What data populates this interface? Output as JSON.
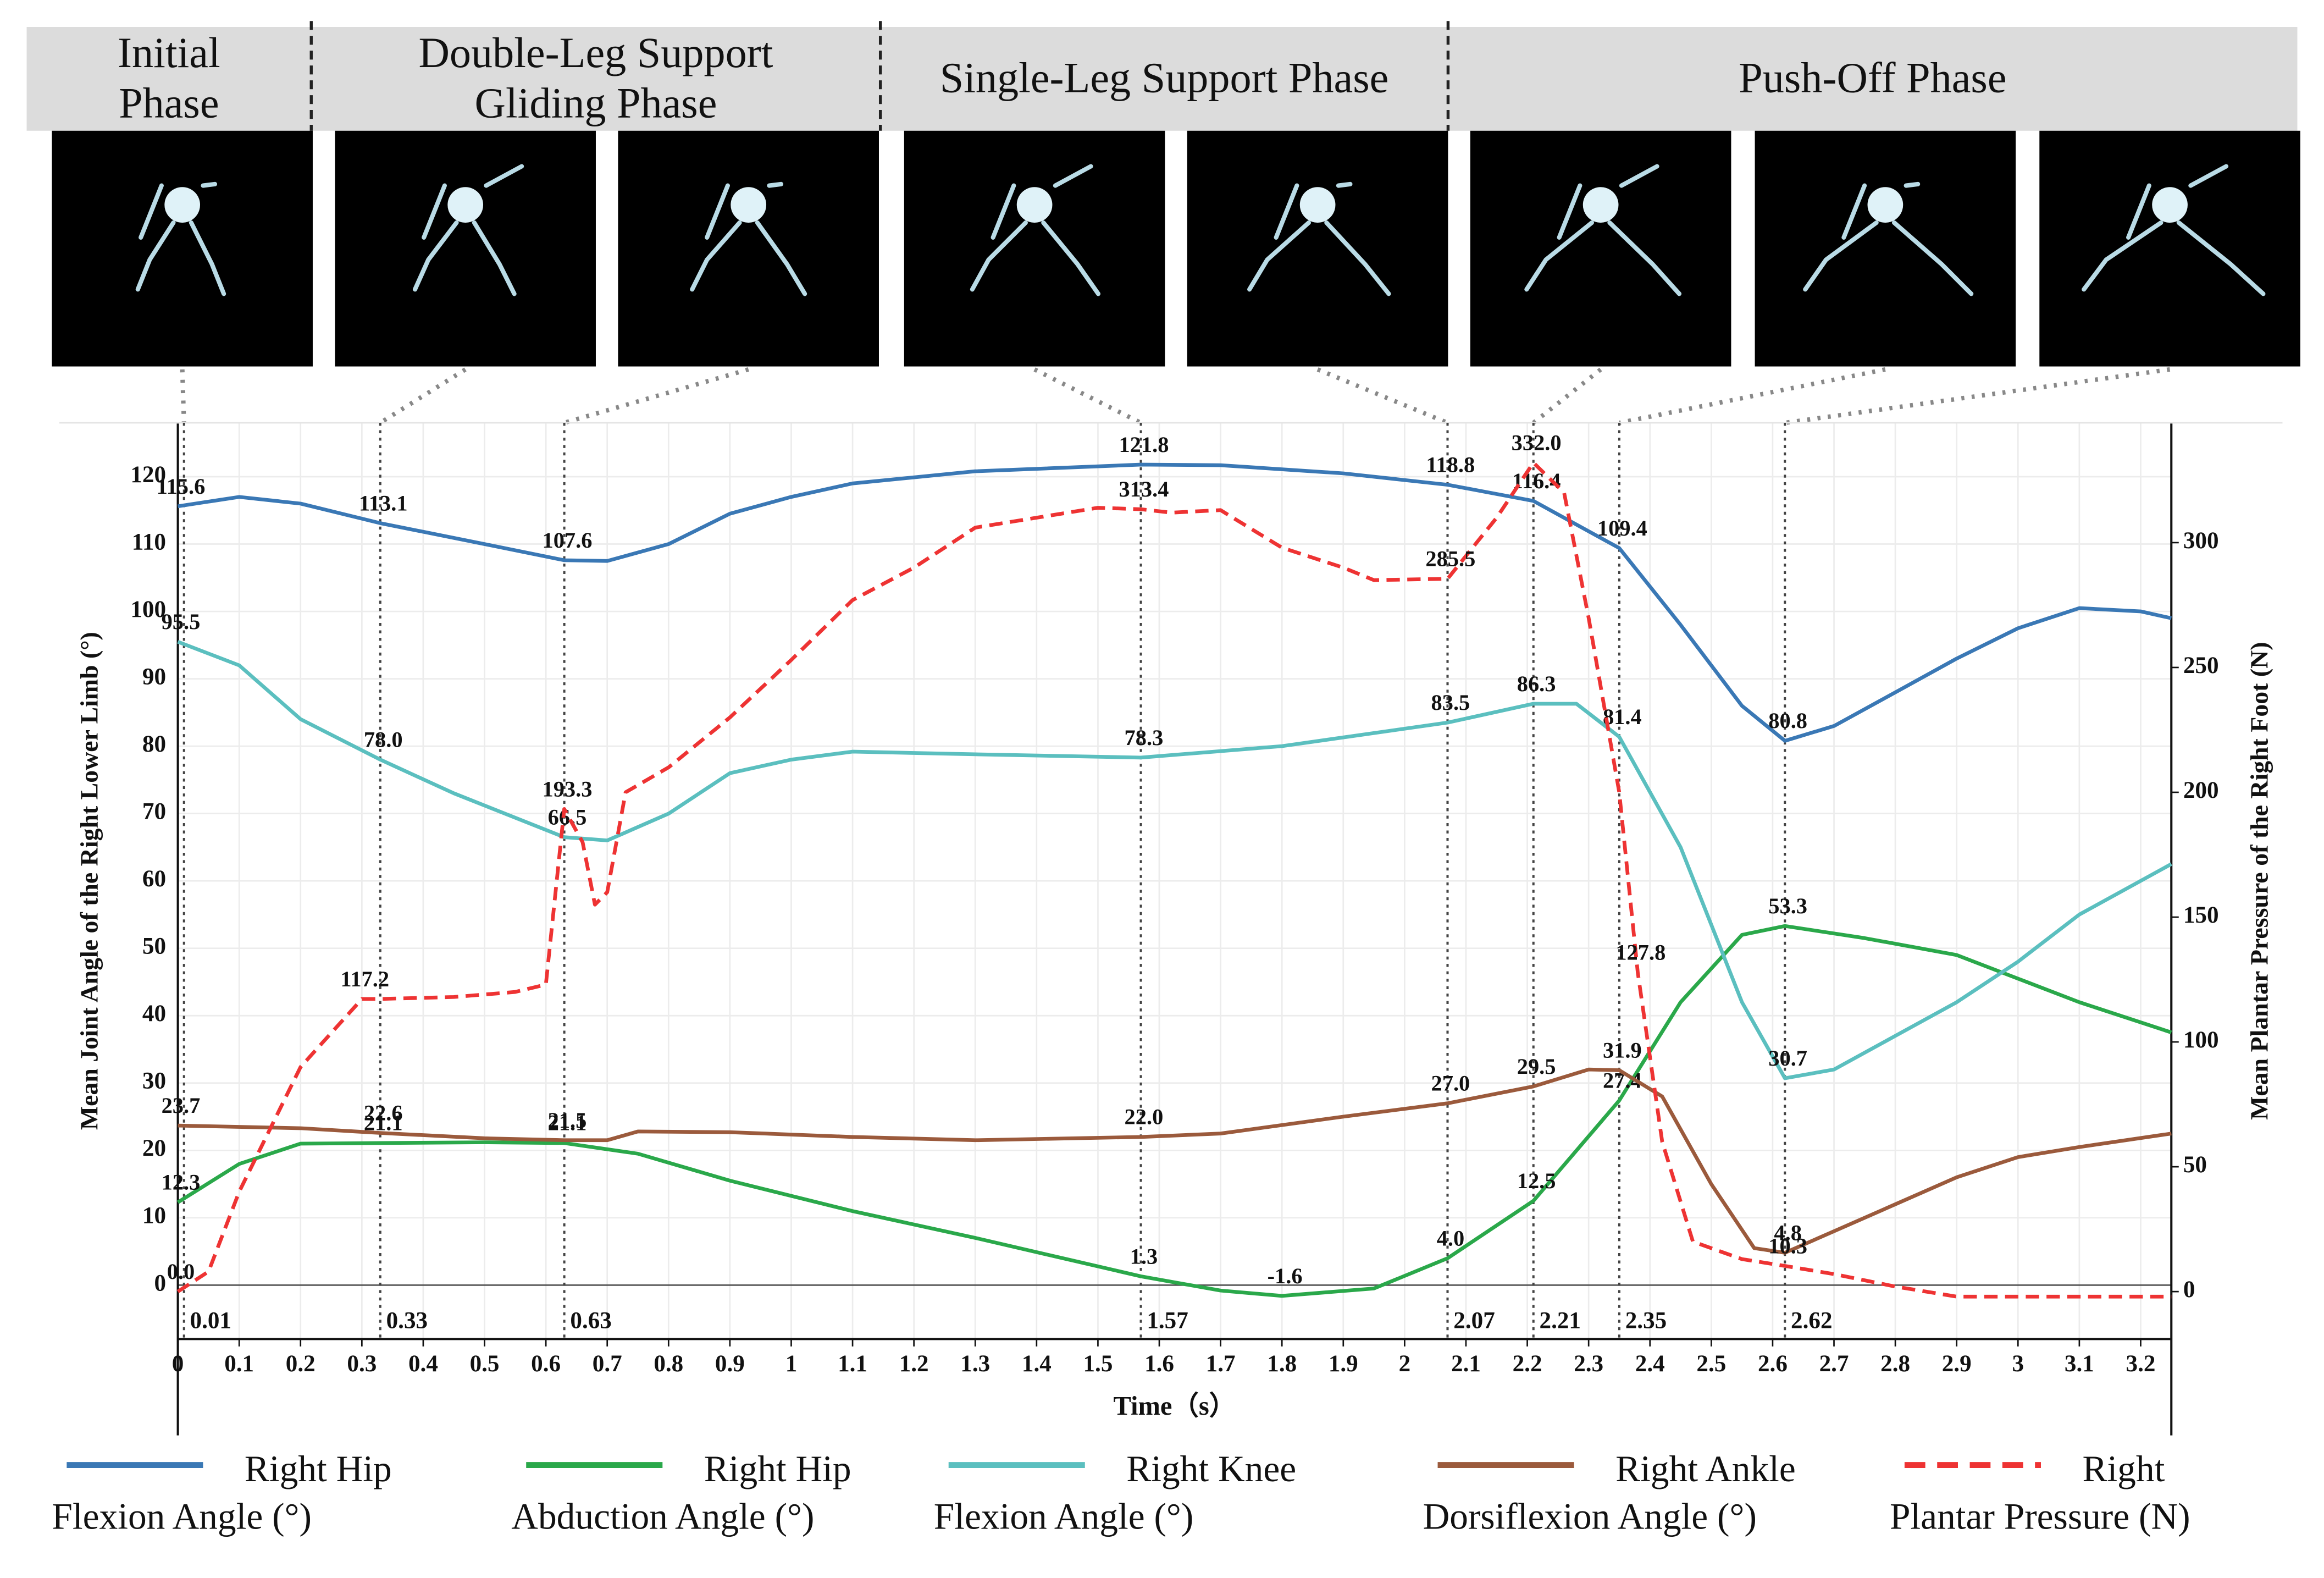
{
  "phases": [
    "Initial Phase",
    "Double-Leg Support Gliding Phase",
    "Single-Leg Support Phase",
    "Push-Off Phase"
  ],
  "chart_data": {
    "type": "line",
    "xlabel": "Time（s）",
    "ylabel": "Mean Joint Angle of the Right Lower Limb (°)",
    "y2label": "Mean Plantar Pressure of the Right Foot (N)",
    "xlim": [
      0,
      3.25
    ],
    "xticks": [
      0,
      0.1,
      0.2,
      0.3,
      0.4,
      0.5,
      0.6,
      0.7,
      0.8,
      0.9,
      1,
      1.1,
      1.2,
      1.3,
      1.4,
      1.5,
      1.6,
      1.7,
      1.8,
      1.9,
      2,
      2.1,
      2.2,
      2.3,
      2.4,
      2.5,
      2.6,
      2.7,
      2.8,
      2.9,
      3,
      3.1,
      3.2
    ],
    "ylim": [
      -8,
      128
    ],
    "yticks": [
      0,
      10,
      20,
      30,
      40,
      50,
      60,
      70,
      80,
      90,
      100,
      110,
      120
    ],
    "y2lim": [
      -19,
      348
    ],
    "y2ticks": [
      0,
      50,
      100,
      150,
      200,
      250,
      300
    ],
    "grid": true,
    "markers": [
      0.01,
      0.33,
      0.63,
      1.57,
      2.07,
      2.21,
      2.35,
      2.62
    ],
    "series": [
      {
        "name": "Right Hip Flexion Angle (°)",
        "color": "#3a78b5",
        "linestyle": "solid",
        "x": [
          0,
          0.1,
          0.2,
          0.33,
          0.5,
          0.63,
          0.7,
          0.8,
          0.9,
          1.0,
          1.1,
          1.3,
          1.57,
          1.7,
          1.9,
          2.07,
          2.21,
          2.35,
          2.45,
          2.55,
          2.62,
          2.7,
          2.8,
          2.9,
          3.0,
          3.1,
          3.2,
          3.25
        ],
        "values": [
          115.6,
          117,
          116,
          113.1,
          110,
          107.6,
          107.5,
          110,
          114.5,
          117,
          119,
          120.8,
          121.8,
          121.7,
          120.5,
          118.8,
          116.4,
          109.4,
          98,
          86,
          80.8,
          83,
          88,
          93,
          97.5,
          100.5,
          100,
          99
        ],
        "value_labels": [
          "115.6",
          null,
          null,
          "113.1",
          null,
          "107.6",
          null,
          null,
          null,
          null,
          null,
          null,
          "121.8",
          null,
          null,
          "118.8",
          "116.4",
          "109.4",
          null,
          null,
          "80.8",
          null,
          null,
          null,
          null,
          null,
          null,
          null
        ]
      },
      {
        "name": "Right Hip Abduction Angle (°)",
        "color": "#2aa84a",
        "linestyle": "solid",
        "x": [
          0,
          0.1,
          0.2,
          0.33,
          0.5,
          0.63,
          0.75,
          0.9,
          1.1,
          1.3,
          1.57,
          1.7,
          1.8,
          1.95,
          2.07,
          2.21,
          2.35,
          2.45,
          2.55,
          2.62,
          2.75,
          2.9,
          3.0,
          3.1,
          3.25
        ],
        "values": [
          12.3,
          18,
          21,
          21.1,
          21.2,
          21.1,
          19.5,
          15.5,
          11,
          7,
          1.3,
          -0.8,
          -1.6,
          -0.5,
          4.0,
          12.5,
          27.4,
          42,
          52,
          53.3,
          51.5,
          49,
          45.5,
          42,
          37.5
        ],
        "value_labels": [
          "12.3",
          null,
          null,
          "21.1",
          null,
          "21.1",
          null,
          null,
          null,
          null,
          "1.3",
          null,
          "-1.6",
          null,
          "4.0",
          "12.5",
          "27.4",
          null,
          null,
          "53.3",
          null,
          null,
          null,
          null,
          null
        ]
      },
      {
        "name": "Right Knee Flexion Angle (°)",
        "color": "#5bbfbf",
        "linestyle": "solid",
        "x": [
          0,
          0.1,
          0.2,
          0.33,
          0.45,
          0.63,
          0.7,
          0.8,
          0.9,
          1.0,
          1.1,
          1.3,
          1.57,
          1.8,
          2.07,
          2.21,
          2.28,
          2.35,
          2.45,
          2.55,
          2.62,
          2.7,
          2.8,
          2.9,
          3.0,
          3.1,
          3.25
        ],
        "values": [
          95.5,
          92,
          84,
          78.0,
          73,
          66.5,
          66,
          70,
          76,
          78,
          79.2,
          78.8,
          78.3,
          80,
          83.5,
          86.3,
          86.3,
          81.4,
          65,
          42,
          30.7,
          32,
          37,
          42,
          48,
          55,
          62.5
        ],
        "value_labels": [
          "95.5",
          null,
          null,
          "78.0",
          null,
          "66.5",
          null,
          null,
          null,
          null,
          null,
          null,
          "78.3",
          null,
          "83.5",
          "86.3",
          null,
          "81.4",
          null,
          null,
          "30.7",
          null,
          null,
          null,
          null,
          null,
          null
        ]
      },
      {
        "name": "Right Ankle Dorsiflexion Angle (°)",
        "color": "#9b5a3c",
        "linestyle": "solid",
        "x": [
          0,
          0.2,
          0.33,
          0.5,
          0.63,
          0.7,
          0.75,
          0.9,
          1.1,
          1.3,
          1.57,
          1.7,
          1.9,
          2.07,
          2.21,
          2.3,
          2.35,
          2.42,
          2.5,
          2.57,
          2.62,
          2.7,
          2.8,
          2.9,
          3.0,
          3.1,
          3.25
        ],
        "values": [
          23.7,
          23.3,
          22.6,
          21.8,
          21.5,
          21.5,
          22.8,
          22.7,
          22,
          21.5,
          22.0,
          22.5,
          25,
          27.0,
          29.5,
          32,
          31.9,
          28,
          15,
          5.5,
          4.8,
          8,
          12,
          16,
          19,
          20.5,
          22.5
        ],
        "value_labels": [
          "23.7",
          null,
          "22.6",
          null,
          "21.5",
          null,
          null,
          null,
          null,
          null,
          "22.0",
          null,
          null,
          "27.0",
          "29.5",
          null,
          "31.9",
          null,
          null,
          null,
          "4.8",
          null,
          null,
          null,
          null,
          null,
          null
        ]
      },
      {
        "name": "Right Plantar Pressure (N)",
        "color": "#ee3333",
        "linestyle": "dashed",
        "axis": "y2",
        "x": [
          0,
          0.05,
          0.1,
          0.2,
          0.3,
          0.33,
          0.45,
          0.55,
          0.6,
          0.63,
          0.66,
          0.68,
          0.7,
          0.73,
          0.8,
          0.9,
          1.0,
          1.1,
          1.2,
          1.3,
          1.4,
          1.5,
          1.57,
          1.62,
          1.7,
          1.8,
          1.9,
          1.95,
          2.07,
          2.15,
          2.21,
          2.26,
          2.3,
          2.35,
          2.38,
          2.42,
          2.47,
          2.55,
          2.62,
          2.7,
          2.8,
          2.9,
          3.0,
          3.25
        ],
        "values": [
          0.0,
          8,
          40,
          90,
          117.2,
          117.2,
          118,
          120,
          123,
          193.3,
          180,
          155,
          160,
          200,
          210,
          230,
          253,
          277,
          290,
          306,
          310,
          314,
          313.4,
          312,
          313,
          298,
          290,
          285,
          285.5,
          310,
          332.0,
          320,
          270,
          200,
          127.8,
          60,
          20,
          13,
          10.3,
          7,
          2,
          -2,
          -2,
          -2
        ],
        "value_labels": [
          "0.0",
          null,
          null,
          null,
          "117.2",
          null,
          null,
          null,
          null,
          "193.3",
          null,
          null,
          null,
          null,
          null,
          null,
          null,
          null,
          null,
          null,
          null,
          null,
          "313.4",
          null,
          null,
          null,
          null,
          null,
          "285.5",
          null,
          "332.0",
          null,
          null,
          null,
          "127.8",
          null,
          null,
          null,
          "10.3",
          null,
          null,
          null,
          null,
          null
        ]
      }
    ]
  }
}
